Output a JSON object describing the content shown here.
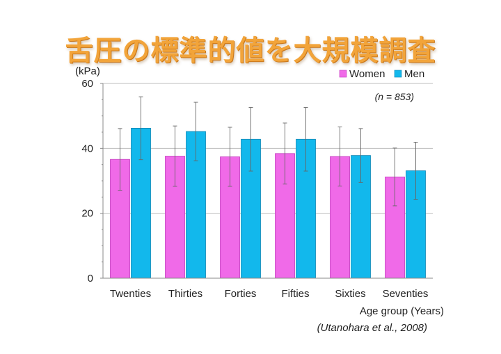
{
  "slide": {
    "title": "舌圧の標準的値を大規模調査",
    "sample_note": "(n = 853)",
    "citation": "(Utanohara et al., 2008)"
  },
  "colors": {
    "women": "#f06ae8",
    "women_edge": "#c23bbd",
    "men": "#12b8ec",
    "men_edge": "#0e86b4",
    "title": "#f2a43a"
  },
  "chart_data": {
    "type": "bar",
    "title": "",
    "xlabel": "Age group (Years)",
    "ylabel": "(kPa)",
    "ylim": [
      0,
      60
    ],
    "yticks": [
      0,
      20,
      40,
      60
    ],
    "grid": "horizontal",
    "legend": "top-right",
    "categories": [
      "Twenties",
      "Thirties",
      "Forties",
      "Fifties",
      "Sixties",
      "Seventies"
    ],
    "series": [
      {
        "name": "Women",
        "values": [
          36.6,
          37.6,
          37.4,
          38.4,
          37.5,
          31.2
        ],
        "err": [
          9.5,
          9.3,
          9.1,
          9.4,
          9.1,
          8.9
        ]
      },
      {
        "name": "Men",
        "values": [
          46.2,
          45.2,
          42.8,
          42.8,
          37.8,
          33.1
        ],
        "err": [
          9.7,
          9.0,
          9.8,
          9.8,
          8.3,
          8.8
        ]
      }
    ]
  }
}
